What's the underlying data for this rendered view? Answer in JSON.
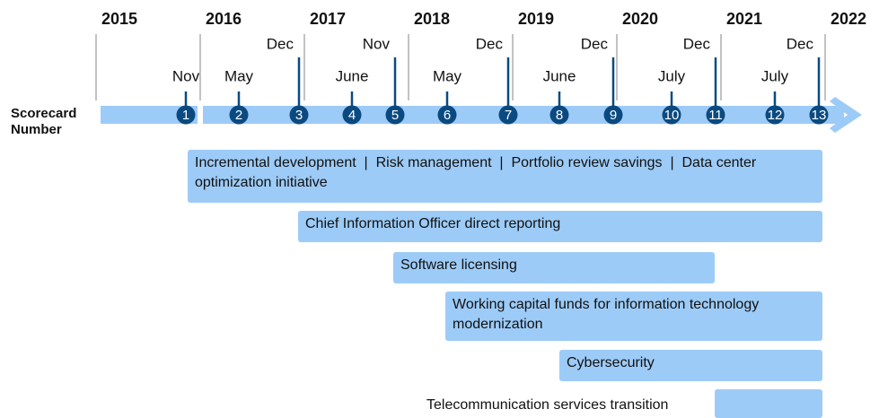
{
  "axis_label": "Scorecard Number",
  "years": [
    "2015",
    "2016",
    "2017",
    "2018",
    "2019",
    "2020",
    "2021",
    "2022"
  ],
  "milestones": [
    {
      "number": "1",
      "month": "Nov"
    },
    {
      "number": "2",
      "month": "May"
    },
    {
      "number": "3",
      "month": "Dec"
    },
    {
      "number": "4",
      "month": "June"
    },
    {
      "number": "5",
      "month": "Nov"
    },
    {
      "number": "6",
      "month": "May"
    },
    {
      "number": "7",
      "month": "Dec"
    },
    {
      "number": "8",
      "month": "June"
    },
    {
      "number": "9",
      "month": "Dec"
    },
    {
      "number": "10",
      "month": "July"
    },
    {
      "number": "11",
      "month": "Dec"
    },
    {
      "number": "12",
      "month": "July"
    },
    {
      "number": "13",
      "month": "Dec"
    }
  ],
  "initiatives": [
    "Incremental development  |  Risk management  |  Portfolio review savings  |  Data center optimization initiative",
    "Chief Information Officer direct reporting",
    "Software licensing",
    "Working capital funds for information technology modernization",
    "Cybersecurity",
    "Telecommunication services transition"
  ]
}
